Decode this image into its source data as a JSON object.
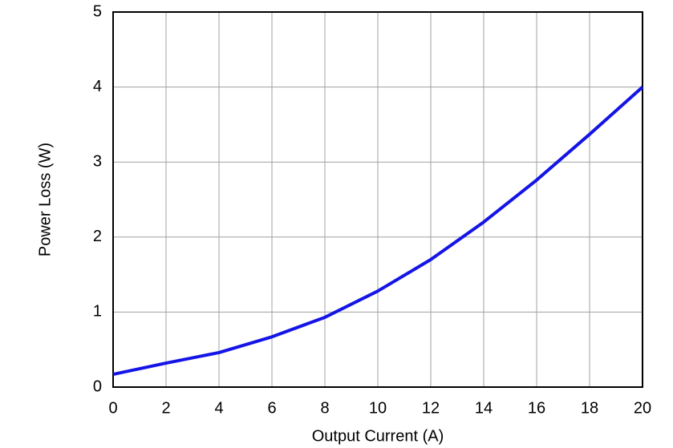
{
  "chart_data": {
    "type": "line",
    "x_label": "Output Current (A)",
    "y_label": "Power Loss (W)",
    "x": [
      0,
      2,
      4,
      6,
      8,
      10,
      12,
      14,
      16,
      18,
      20
    ],
    "series": [
      {
        "color": "#1414e6",
        "values": [
          0.17,
          0.32,
          0.46,
          0.67,
          0.93,
          1.28,
          1.7,
          2.2,
          2.76,
          3.37,
          4.0
        ]
      }
    ],
    "xlim": [
      0,
      20
    ],
    "xticks": [
      0,
      2,
      4,
      6,
      8,
      10,
      12,
      14,
      16,
      18,
      20
    ],
    "ylim": [
      0,
      5
    ],
    "yticks": [
      0,
      1,
      2,
      3,
      4,
      5
    ],
    "grid": true
  }
}
